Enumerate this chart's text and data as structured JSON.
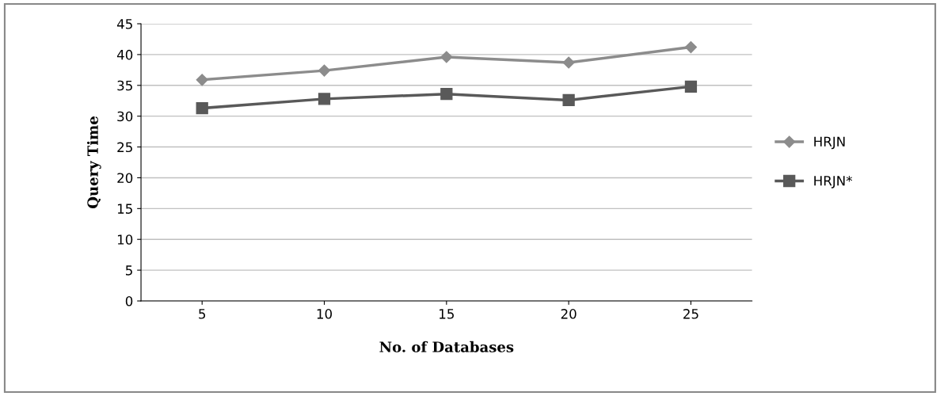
{
  "chart_data": {
    "type": "line",
    "xlabel": "No. of Databases",
    "ylabel": "Query Time",
    "categories": [
      "5",
      "10",
      "15",
      "20",
      "25"
    ],
    "series": [
      {
        "name": "HRJN",
        "color": "#8c8c8c",
        "values": [
          35.9,
          37.4,
          39.6,
          38.7,
          41.2
        ],
        "marker": "diamond"
      },
      {
        "name": "HRJN*",
        "color": "#595959",
        "values": [
          31.3,
          32.8,
          33.6,
          32.6,
          34.8
        ],
        "marker": "square"
      }
    ],
    "ylim": [
      0,
      45
    ],
    "yticks": [
      0,
      5,
      10,
      15,
      20,
      25,
      30,
      35,
      40,
      45
    ],
    "grid": "y",
    "legend": "right"
  }
}
